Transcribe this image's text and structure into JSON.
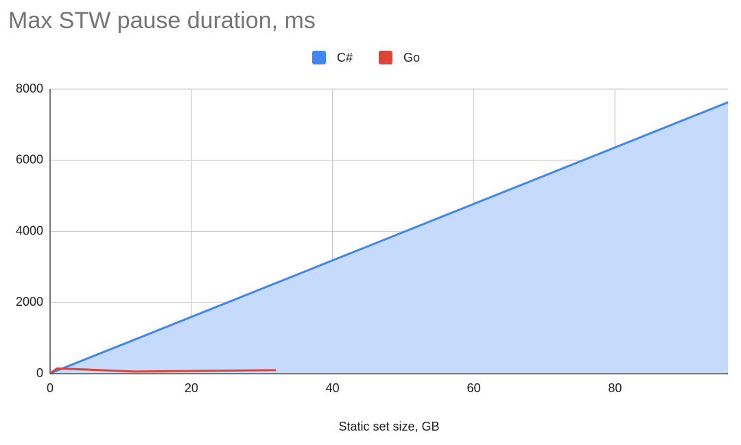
{
  "chart_data": {
    "type": "area",
    "title": "Max STW pause duration, ms",
    "x_label": "Static set size, GB",
    "x": [
      0,
      1,
      12,
      32,
      96
    ],
    "series": [
      {
        "name": "C#",
        "type": "area",
        "color": "#4285f4",
        "fill": "#c6dafc",
        "values": [
          5,
          90,
          960,
          2550,
          7630
        ]
      },
      {
        "name": "Go",
        "type": "line",
        "color": "#db4437",
        "values": [
          10,
          150,
          60,
          100,
          null
        ]
      }
    ],
    "xlim": [
      0,
      96
    ],
    "xticks": [
      0,
      20,
      40,
      60,
      80
    ],
    "ylim": [
      0,
      8000
    ],
    "yticks": [
      0,
      2000,
      4000,
      6000,
      8000
    ],
    "grid": true,
    "legend": "top"
  }
}
